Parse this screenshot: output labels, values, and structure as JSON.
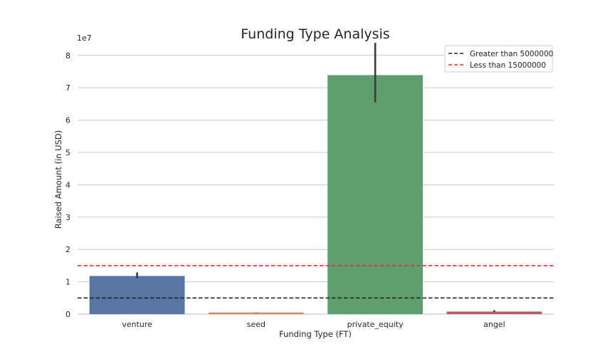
{
  "chart_data": {
    "type": "bar",
    "title": "Funding Type Analysis",
    "xlabel": "Funding Type (FT)",
    "ylabel": "Raised Amount (in USD)",
    "y_scale_label": "1e7",
    "categories": [
      "venture",
      "seed",
      "private_equity",
      "angel"
    ],
    "values": [
      11.8,
      0.5,
      73.9,
      0.8
    ],
    "value_units_multiplier": "1e7 scale shown as 0-8 ticks; values here in millions USD",
    "error_bars": [
      {
        "low": 11.1,
        "high": 12.9
      },
      {
        "low": 0.45,
        "high": 0.55
      },
      {
        "low": 65.5,
        "high": 83.9
      },
      {
        "low": 0.7,
        "high": 1.2
      }
    ],
    "bar_colors": [
      "#5875a4",
      "#cc8963",
      "#5f9e6e",
      "#b55d60"
    ],
    "ylim": [
      0,
      87
    ],
    "yticks": [
      "0",
      "1",
      "2",
      "3",
      "4",
      "5",
      "6",
      "7",
      "8"
    ],
    "reference_lines": [
      {
        "label": "Greater than 5000000",
        "value": 5,
        "color": "#262626",
        "style": "dashed"
      },
      {
        "label": "Less than 15000000",
        "value": 15,
        "color": "#e8302a",
        "style": "dashed"
      }
    ],
    "legend_position": "top-right",
    "grid": "horizontal"
  }
}
